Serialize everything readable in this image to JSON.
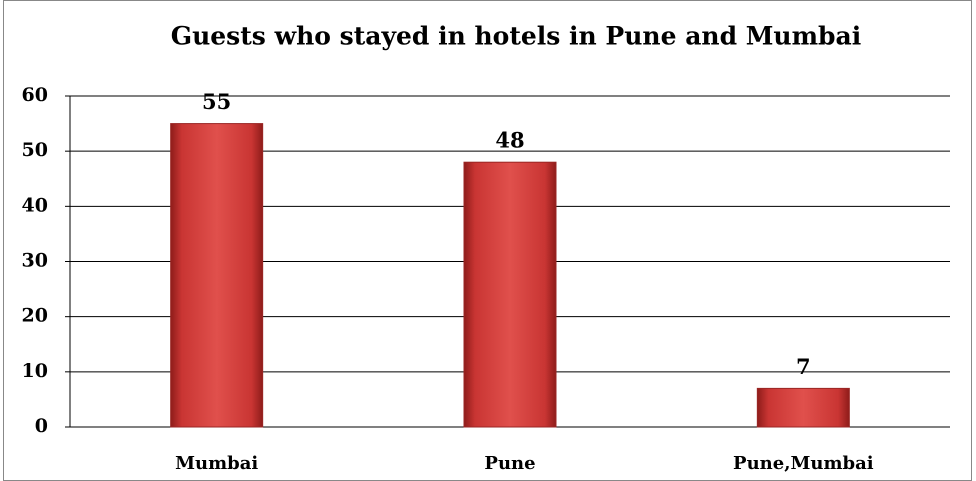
{
  "chart_data": {
    "type": "bar",
    "title": "Guests who stayed in hotels in Pune and Mumbai",
    "categories": [
      "Mumbai",
      "Pune",
      "Pune,Mumbai"
    ],
    "values": [
      55,
      48,
      7
    ],
    "color": "#d9403d",
    "ylim": [
      0,
      60
    ],
    "yticks": [
      0,
      10,
      20,
      30,
      40,
      50,
      60
    ],
    "grid": true
  }
}
